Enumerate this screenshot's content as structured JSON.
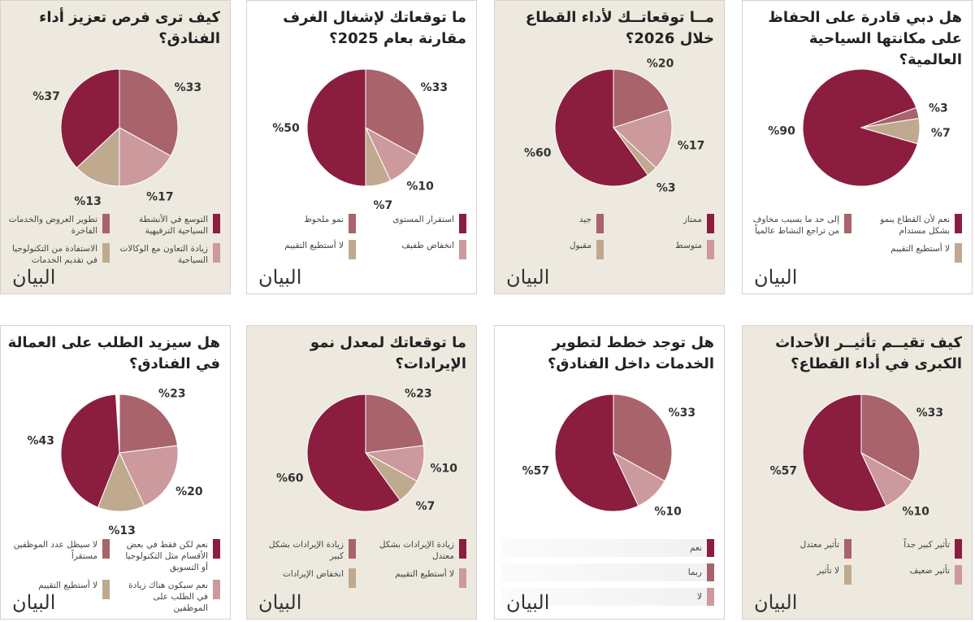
{
  "colors": {
    "dark": "#8b1e3f",
    "medium": "#a9636b",
    "light": "#cc999d",
    "tan": "#bfa98f"
  },
  "logo": "البيان",
  "chart_data": [
    {
      "type": "pie",
      "title": "كيف ترى فرص تعزيز أداء الفنادق؟",
      "start_angle": 0,
      "slices": [
        {
          "label": "تطوير العروض والخدمات الفاخرة",
          "value": 33,
          "color": "medium"
        },
        {
          "label": "زيادة التعاون مع الوكالات السياحية",
          "value": 17,
          "color": "light"
        },
        {
          "label": "الاستفادة من التكنولوجيا في تقديم الخدمات",
          "value": 13,
          "color": "tan"
        },
        {
          "label": "التوسع في الأنشطة السياحية الترفيهية",
          "value": 37,
          "color": "dark"
        }
      ],
      "legend_order": [
        3,
        0,
        1,
        2
      ]
    },
    {
      "type": "pie",
      "title": "ما توقعاتك لإشغال الغرف مقارنة بعام 2025؟",
      "start_angle": 0,
      "slices": [
        {
          "label": "نمو ملحوظ",
          "value": 33,
          "color": "medium"
        },
        {
          "label": "انخفاض طفيف",
          "value": 10,
          "color": "light"
        },
        {
          "label": "لا أستطيع التقييم",
          "value": 7,
          "color": "tan"
        },
        {
          "label": "استقرار المستوى",
          "value": 50,
          "color": "dark"
        }
      ],
      "legend_order": [
        3,
        0,
        1,
        2
      ]
    },
    {
      "type": "pie",
      "title": "مــا توقعاتــك لأداء القطاع خلال 2026؟",
      "start_angle": 0,
      "slices": [
        {
          "label": "جيد",
          "value": 20,
          "color": "medium"
        },
        {
          "label": "متوسط",
          "value": 17,
          "color": "light"
        },
        {
          "label": "مقبول",
          "value": 3,
          "color": "tan"
        },
        {
          "label": "ممتاز",
          "value": 60,
          "color": "dark"
        }
      ],
      "legend_order": [
        3,
        0,
        1,
        2
      ]
    },
    {
      "type": "pie",
      "title": "هل دبي قادرة على الحفاظ على مكانتها السياحية العالمية؟",
      "start_angle": 70,
      "slices": [
        {
          "label": "إلى حد ما بسبب مخاوف من تراجع النشاط عالمياً",
          "value": 3,
          "color": "medium"
        },
        {
          "label": "لا أستطيع التقييم",
          "value": 7,
          "color": "tan"
        },
        {
          "label": "نعم لأن القطاع ينمو بشكل مستدام",
          "value": 90,
          "color": "dark"
        }
      ],
      "legend_order": [
        2,
        0,
        1
      ]
    },
    {
      "type": "pie",
      "title": "هل سيزيد الطلب على العمالة في الفنادق؟",
      "start_angle": 0,
      "slices": [
        {
          "label": "لا سيظل عدد الموظفين مستقراً",
          "value": 23,
          "color": "medium"
        },
        {
          "label": "نعم سيكون هناك زيادة في الطلب على الموظفين",
          "value": 20,
          "color": "light"
        },
        {
          "label": "لا أستطيع التقييم",
          "value": 13,
          "color": "tan"
        },
        {
          "label": "نعم لكن فقط في بعض الأقسام مثل التكنولوجيا أو التسويق",
          "value": 43,
          "color": "dark"
        }
      ],
      "legend_order": [
        3,
        0,
        1,
        2
      ]
    },
    {
      "type": "pie",
      "title": "ما توقعاتك لمعدل نمو الإيرادات؟",
      "start_angle": 0,
      "slices": [
        {
          "label": "زيادة الإيرادات بشكل كبير",
          "value": 23,
          "color": "medium"
        },
        {
          "label": "لا أستطيع التقييم",
          "value": 10,
          "color": "light"
        },
        {
          "label": "انخفاض الإيرادات",
          "value": 7,
          "color": "tan"
        },
        {
          "label": "زيادة الإيرادات بشكل معتدل",
          "value": 60,
          "color": "dark"
        }
      ],
      "legend_order": [
        3,
        0,
        1,
        2
      ]
    },
    {
      "type": "pie",
      "title": "هل توجد خطط لتطوير الخدمات داخل الفنادق؟",
      "start_angle": 0,
      "legend_style": "bars",
      "slices": [
        {
          "label": "ربما",
          "value": 33,
          "color": "medium"
        },
        {
          "label": "لا",
          "value": 10,
          "color": "light"
        },
        {
          "label": "نعم",
          "value": 57,
          "color": "dark"
        }
      ],
      "legend_order": [
        2,
        0,
        1
      ]
    },
    {
      "type": "pie",
      "title": "كيف تقيــم تأثيــر الأحداث الكبرى في أداء القطاع؟",
      "start_angle": 0,
      "slices": [
        {
          "label": "تأثير معتدل",
          "value": 33,
          "color": "medium"
        },
        {
          "label": "تأثير ضعيف",
          "value": 10,
          "color": "light"
        },
        {
          "label": "تأثير كبير جداً",
          "value": 57,
          "color": "dark"
        }
      ],
      "legend_extra": {
        "label": "لا تأثير",
        "color": "tan"
      },
      "legend_order": [
        2,
        0,
        1
      ]
    }
  ]
}
